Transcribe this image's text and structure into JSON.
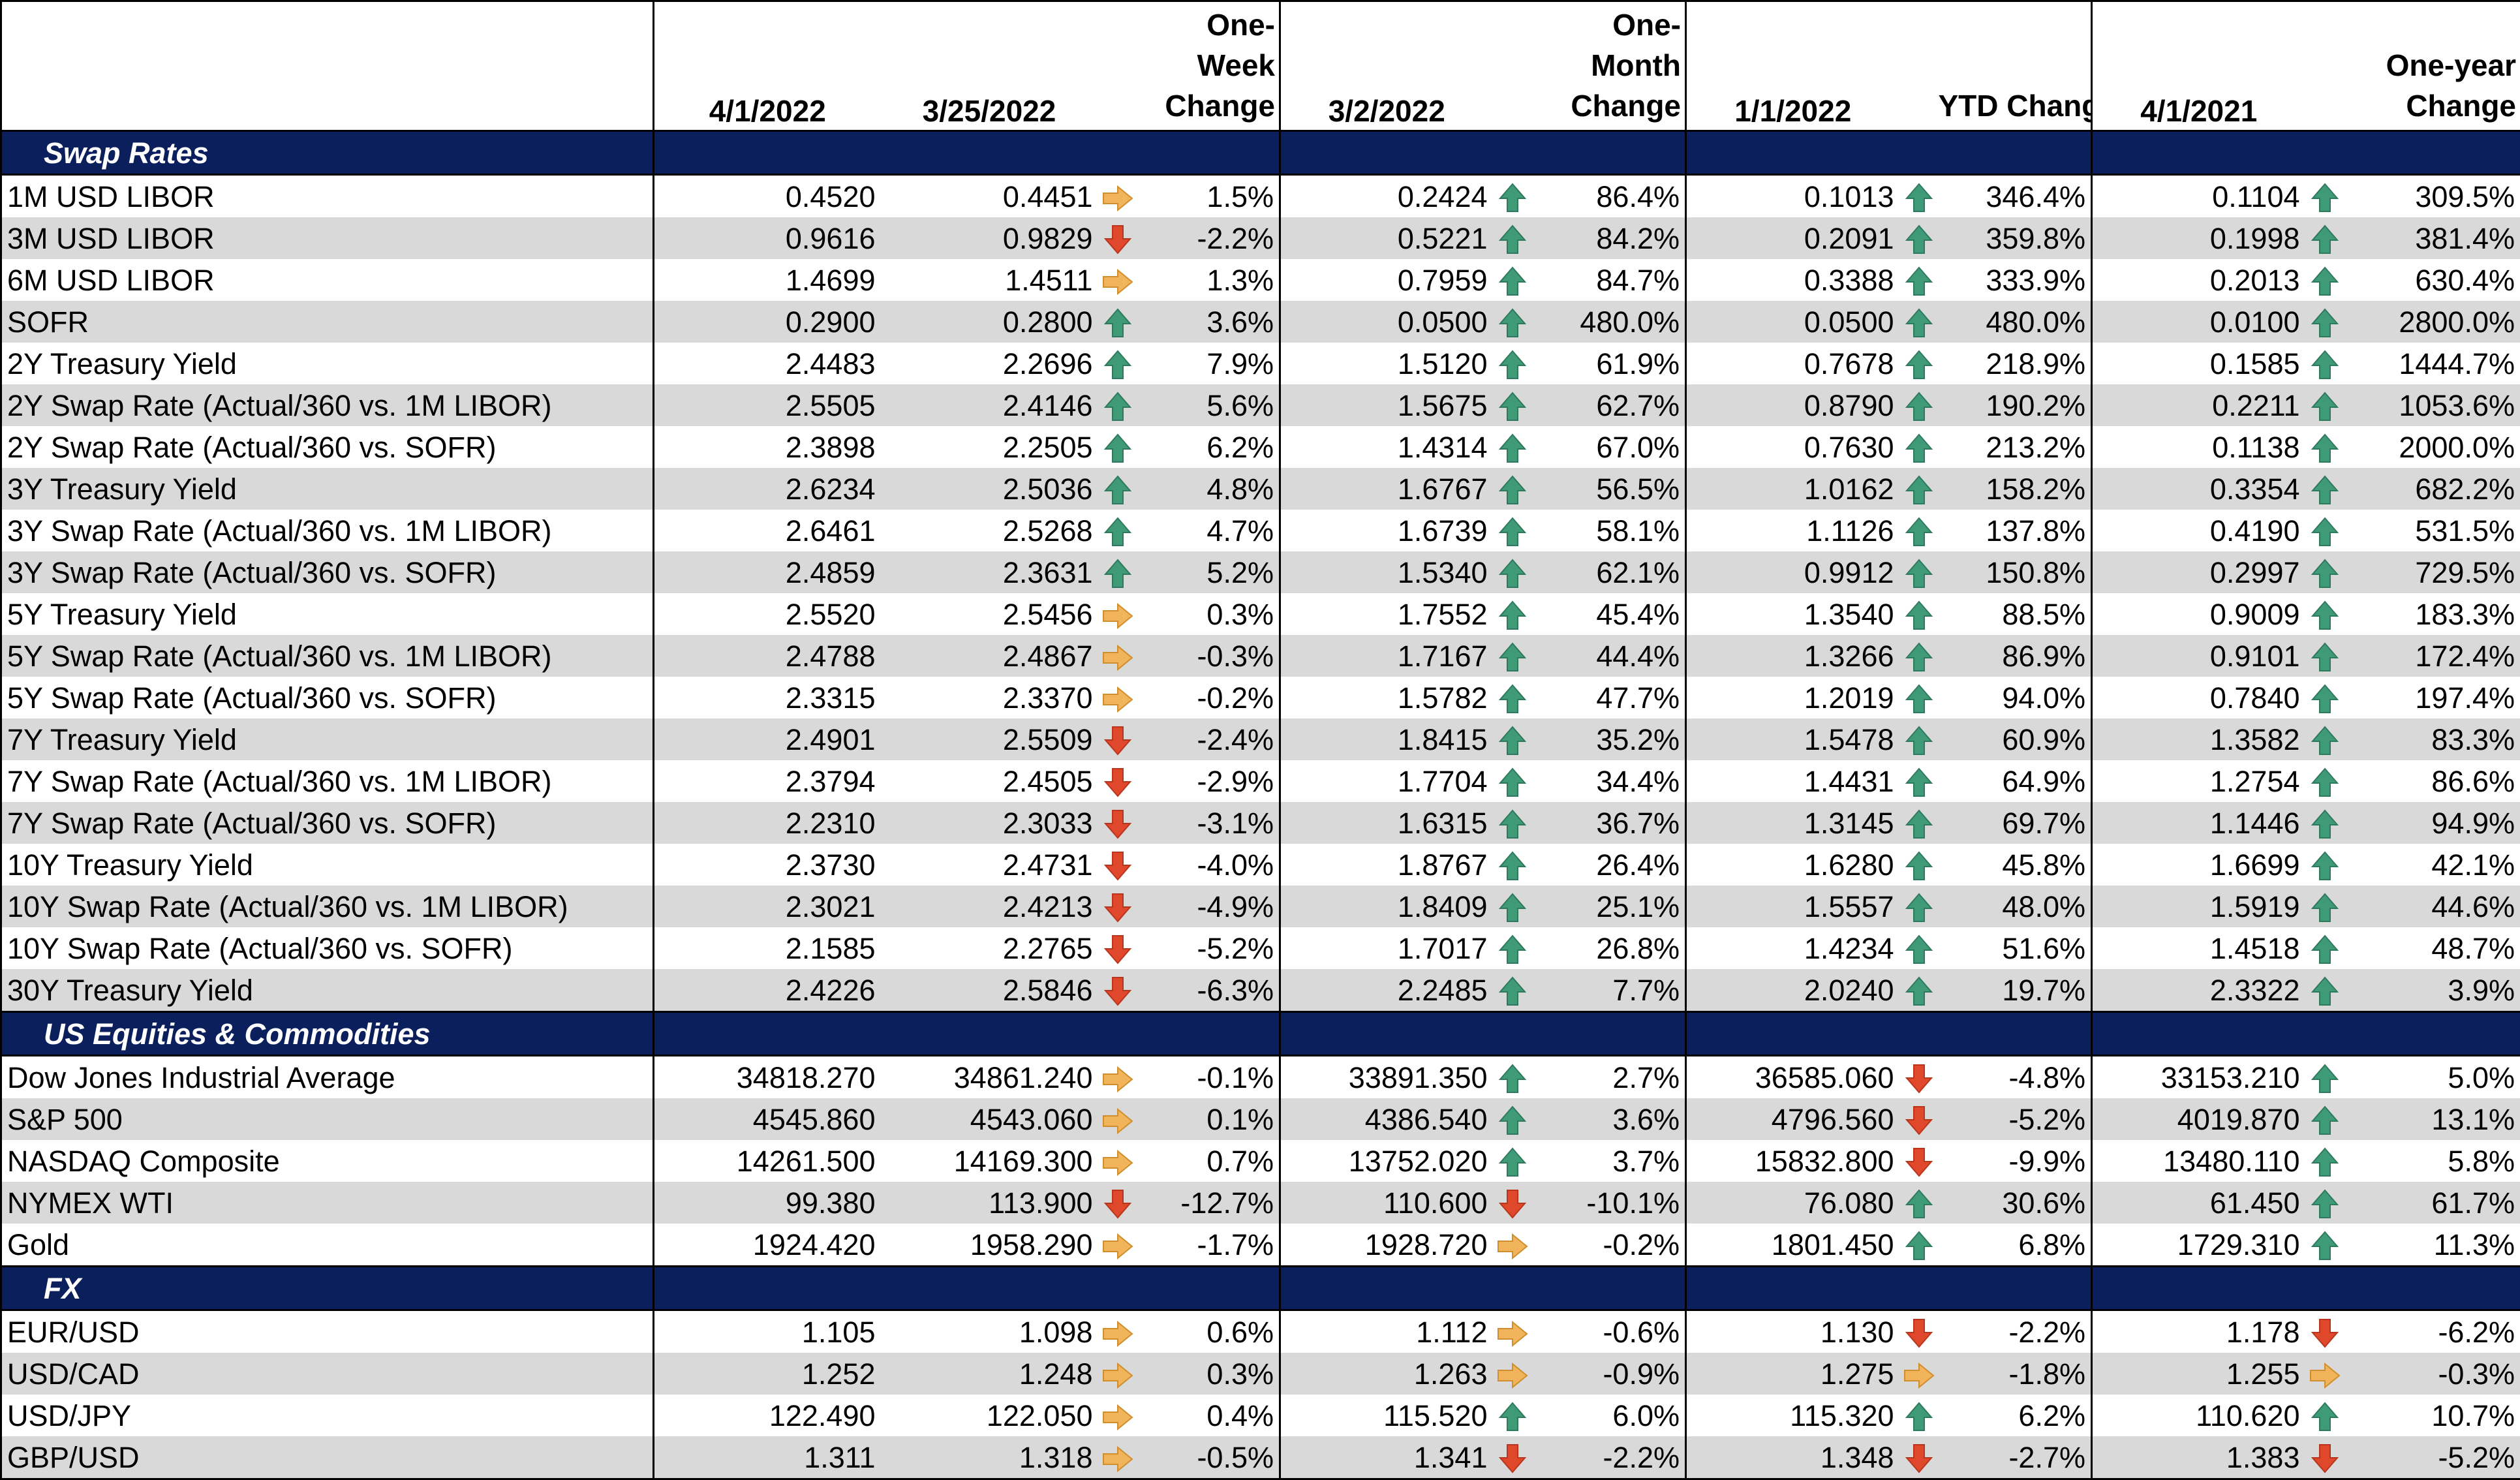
{
  "header": {
    "col_date_current": "4/1/2022",
    "col_date_week": "3/25/2022",
    "col_change_week": "One-Week Change",
    "col_date_month": "3/2/2022",
    "col_change_month": "One-Month Change",
    "col_date_ytd": "1/1/2022",
    "col_change_ytd": "YTD Change",
    "col_date_year": "4/1/2021",
    "col_change_year": "One-year Change"
  },
  "arrow_icons": {
    "up": "arrow-up-icon",
    "down": "arrow-down-icon",
    "flat": "arrow-right-icon"
  },
  "colors": {
    "section_bg": "#0b1f5c",
    "shade": "#d9d9d9",
    "up": "#3f9a78",
    "down": "#e0482b",
    "flat": "#f2b45a"
  },
  "sections": [
    {
      "title": "Swap Rates",
      "rows": [
        [
          "1M USD LIBOR",
          "0.4520",
          "0.4451",
          "flat",
          "1.5%",
          "0.2424",
          "up",
          "86.4%",
          "0.1013",
          "up",
          "346.4%",
          "0.1104",
          "up",
          "309.5%"
        ],
        [
          "3M USD LIBOR",
          "0.9616",
          "0.9829",
          "down",
          "-2.2%",
          "0.5221",
          "up",
          "84.2%",
          "0.2091",
          "up",
          "359.8%",
          "0.1998",
          "up",
          "381.4%"
        ],
        [
          "6M USD LIBOR",
          "1.4699",
          "1.4511",
          "flat",
          "1.3%",
          "0.7959",
          "up",
          "84.7%",
          "0.3388",
          "up",
          "333.9%",
          "0.2013",
          "up",
          "630.4%"
        ],
        [
          "SOFR",
          "0.2900",
          "0.2800",
          "up",
          "3.6%",
          "0.0500",
          "up",
          "480.0%",
          "0.0500",
          "up",
          "480.0%",
          "0.0100",
          "up",
          "2800.0%"
        ],
        [
          "2Y Treasury Yield",
          "2.4483",
          "2.2696",
          "up",
          "7.9%",
          "1.5120",
          "up",
          "61.9%",
          "0.7678",
          "up",
          "218.9%",
          "0.1585",
          "up",
          "1444.7%"
        ],
        [
          "2Y Swap Rate (Actual/360 vs. 1M LIBOR)",
          "2.5505",
          "2.4146",
          "up",
          "5.6%",
          "1.5675",
          "up",
          "62.7%",
          "0.8790",
          "up",
          "190.2%",
          "0.2211",
          "up",
          "1053.6%"
        ],
        [
          "2Y Swap Rate (Actual/360 vs. SOFR)",
          "2.3898",
          "2.2505",
          "up",
          "6.2%",
          "1.4314",
          "up",
          "67.0%",
          "0.7630",
          "up",
          "213.2%",
          "0.1138",
          "up",
          "2000.0%"
        ],
        [
          "3Y Treasury Yield",
          "2.6234",
          "2.5036",
          "up",
          "4.8%",
          "1.6767",
          "up",
          "56.5%",
          "1.0162",
          "up",
          "158.2%",
          "0.3354",
          "up",
          "682.2%"
        ],
        [
          "3Y Swap Rate (Actual/360 vs. 1M LIBOR)",
          "2.6461",
          "2.5268",
          "up",
          "4.7%",
          "1.6739",
          "up",
          "58.1%",
          "1.1126",
          "up",
          "137.8%",
          "0.4190",
          "up",
          "531.5%"
        ],
        [
          "3Y Swap Rate (Actual/360 vs. SOFR)",
          "2.4859",
          "2.3631",
          "up",
          "5.2%",
          "1.5340",
          "up",
          "62.1%",
          "0.9912",
          "up",
          "150.8%",
          "0.2997",
          "up",
          "729.5%"
        ],
        [
          "5Y Treasury Yield",
          "2.5520",
          "2.5456",
          "flat",
          "0.3%",
          "1.7552",
          "up",
          "45.4%",
          "1.3540",
          "up",
          "88.5%",
          "0.9009",
          "up",
          "183.3%"
        ],
        [
          "5Y Swap Rate (Actual/360 vs. 1M LIBOR)",
          "2.4788",
          "2.4867",
          "flat",
          "-0.3%",
          "1.7167",
          "up",
          "44.4%",
          "1.3266",
          "up",
          "86.9%",
          "0.9101",
          "up",
          "172.4%"
        ],
        [
          "5Y Swap Rate (Actual/360 vs. SOFR)",
          "2.3315",
          "2.3370",
          "flat",
          "-0.2%",
          "1.5782",
          "up",
          "47.7%",
          "1.2019",
          "up",
          "94.0%",
          "0.7840",
          "up",
          "197.4%"
        ],
        [
          "7Y Treasury Yield",
          "2.4901",
          "2.5509",
          "down",
          "-2.4%",
          "1.8415",
          "up",
          "35.2%",
          "1.5478",
          "up",
          "60.9%",
          "1.3582",
          "up",
          "83.3%"
        ],
        [
          "7Y Swap Rate (Actual/360 vs. 1M LIBOR)",
          "2.3794",
          "2.4505",
          "down",
          "-2.9%",
          "1.7704",
          "up",
          "34.4%",
          "1.4431",
          "up",
          "64.9%",
          "1.2754",
          "up",
          "86.6%"
        ],
        [
          "7Y Swap Rate (Actual/360 vs. SOFR)",
          "2.2310",
          "2.3033",
          "down",
          "-3.1%",
          "1.6315",
          "up",
          "36.7%",
          "1.3145",
          "up",
          "69.7%",
          "1.1446",
          "up",
          "94.9%"
        ],
        [
          "10Y Treasury Yield",
          "2.3730",
          "2.4731",
          "down",
          "-4.0%",
          "1.8767",
          "up",
          "26.4%",
          "1.6280",
          "up",
          "45.8%",
          "1.6699",
          "up",
          "42.1%"
        ],
        [
          "10Y Swap Rate (Actual/360 vs. 1M LIBOR)",
          "2.3021",
          "2.4213",
          "down",
          "-4.9%",
          "1.8409",
          "up",
          "25.1%",
          "1.5557",
          "up",
          "48.0%",
          "1.5919",
          "up",
          "44.6%"
        ],
        [
          "10Y Swap Rate (Actual/360 vs. SOFR)",
          "2.1585",
          "2.2765",
          "down",
          "-5.2%",
          "1.7017",
          "up",
          "26.8%",
          "1.4234",
          "up",
          "51.6%",
          "1.4518",
          "up",
          "48.7%"
        ],
        [
          "30Y Treasury Yield",
          "2.4226",
          "2.5846",
          "down",
          "-6.3%",
          "2.2485",
          "up",
          "7.7%",
          "2.0240",
          "up",
          "19.7%",
          "2.3322",
          "up",
          "3.9%"
        ]
      ]
    },
    {
      "title": "US Equities & Commodities",
      "rows": [
        [
          "Dow Jones Industrial Average",
          "34818.270",
          "34861.240",
          "flat",
          "-0.1%",
          "33891.350",
          "up",
          "2.7%",
          "36585.060",
          "down",
          "-4.8%",
          "33153.210",
          "up",
          "5.0%"
        ],
        [
          "S&P 500",
          "4545.860",
          "4543.060",
          "flat",
          "0.1%",
          "4386.540",
          "up",
          "3.6%",
          "4796.560",
          "down",
          "-5.2%",
          "4019.870",
          "up",
          "13.1%"
        ],
        [
          "NASDAQ Composite",
          "14261.500",
          "14169.300",
          "flat",
          "0.7%",
          "13752.020",
          "up",
          "3.7%",
          "15832.800",
          "down",
          "-9.9%",
          "13480.110",
          "up",
          "5.8%"
        ],
        [
          "NYMEX WTI",
          "99.380",
          "113.900",
          "down",
          "-12.7%",
          "110.600",
          "down",
          "-10.1%",
          "76.080",
          "up",
          "30.6%",
          "61.450",
          "up",
          "61.7%"
        ],
        [
          "Gold",
          "1924.420",
          "1958.290",
          "flat",
          "-1.7%",
          "1928.720",
          "flat",
          "-0.2%",
          "1801.450",
          "up",
          "6.8%",
          "1729.310",
          "up",
          "11.3%"
        ]
      ]
    },
    {
      "title": "FX",
      "rows": [
        [
          "EUR/USD",
          "1.105",
          "1.098",
          "flat",
          "0.6%",
          "1.112",
          "flat",
          "-0.6%",
          "1.130",
          "down",
          "-2.2%",
          "1.178",
          "down",
          "-6.2%"
        ],
        [
          "USD/CAD",
          "1.252",
          "1.248",
          "flat",
          "0.3%",
          "1.263",
          "flat",
          "-0.9%",
          "1.275",
          "flat",
          "-1.8%",
          "1.255",
          "flat",
          "-0.3%"
        ],
        [
          "USD/JPY",
          "122.490",
          "122.050",
          "flat",
          "0.4%",
          "115.520",
          "up",
          "6.0%",
          "115.320",
          "up",
          "6.2%",
          "110.620",
          "up",
          "10.7%"
        ],
        [
          "GBP/USD",
          "1.311",
          "1.318",
          "flat",
          "-0.5%",
          "1.341",
          "down",
          "-2.2%",
          "1.348",
          "down",
          "-2.7%",
          "1.383",
          "down",
          "-5.2%"
        ]
      ]
    }
  ]
}
